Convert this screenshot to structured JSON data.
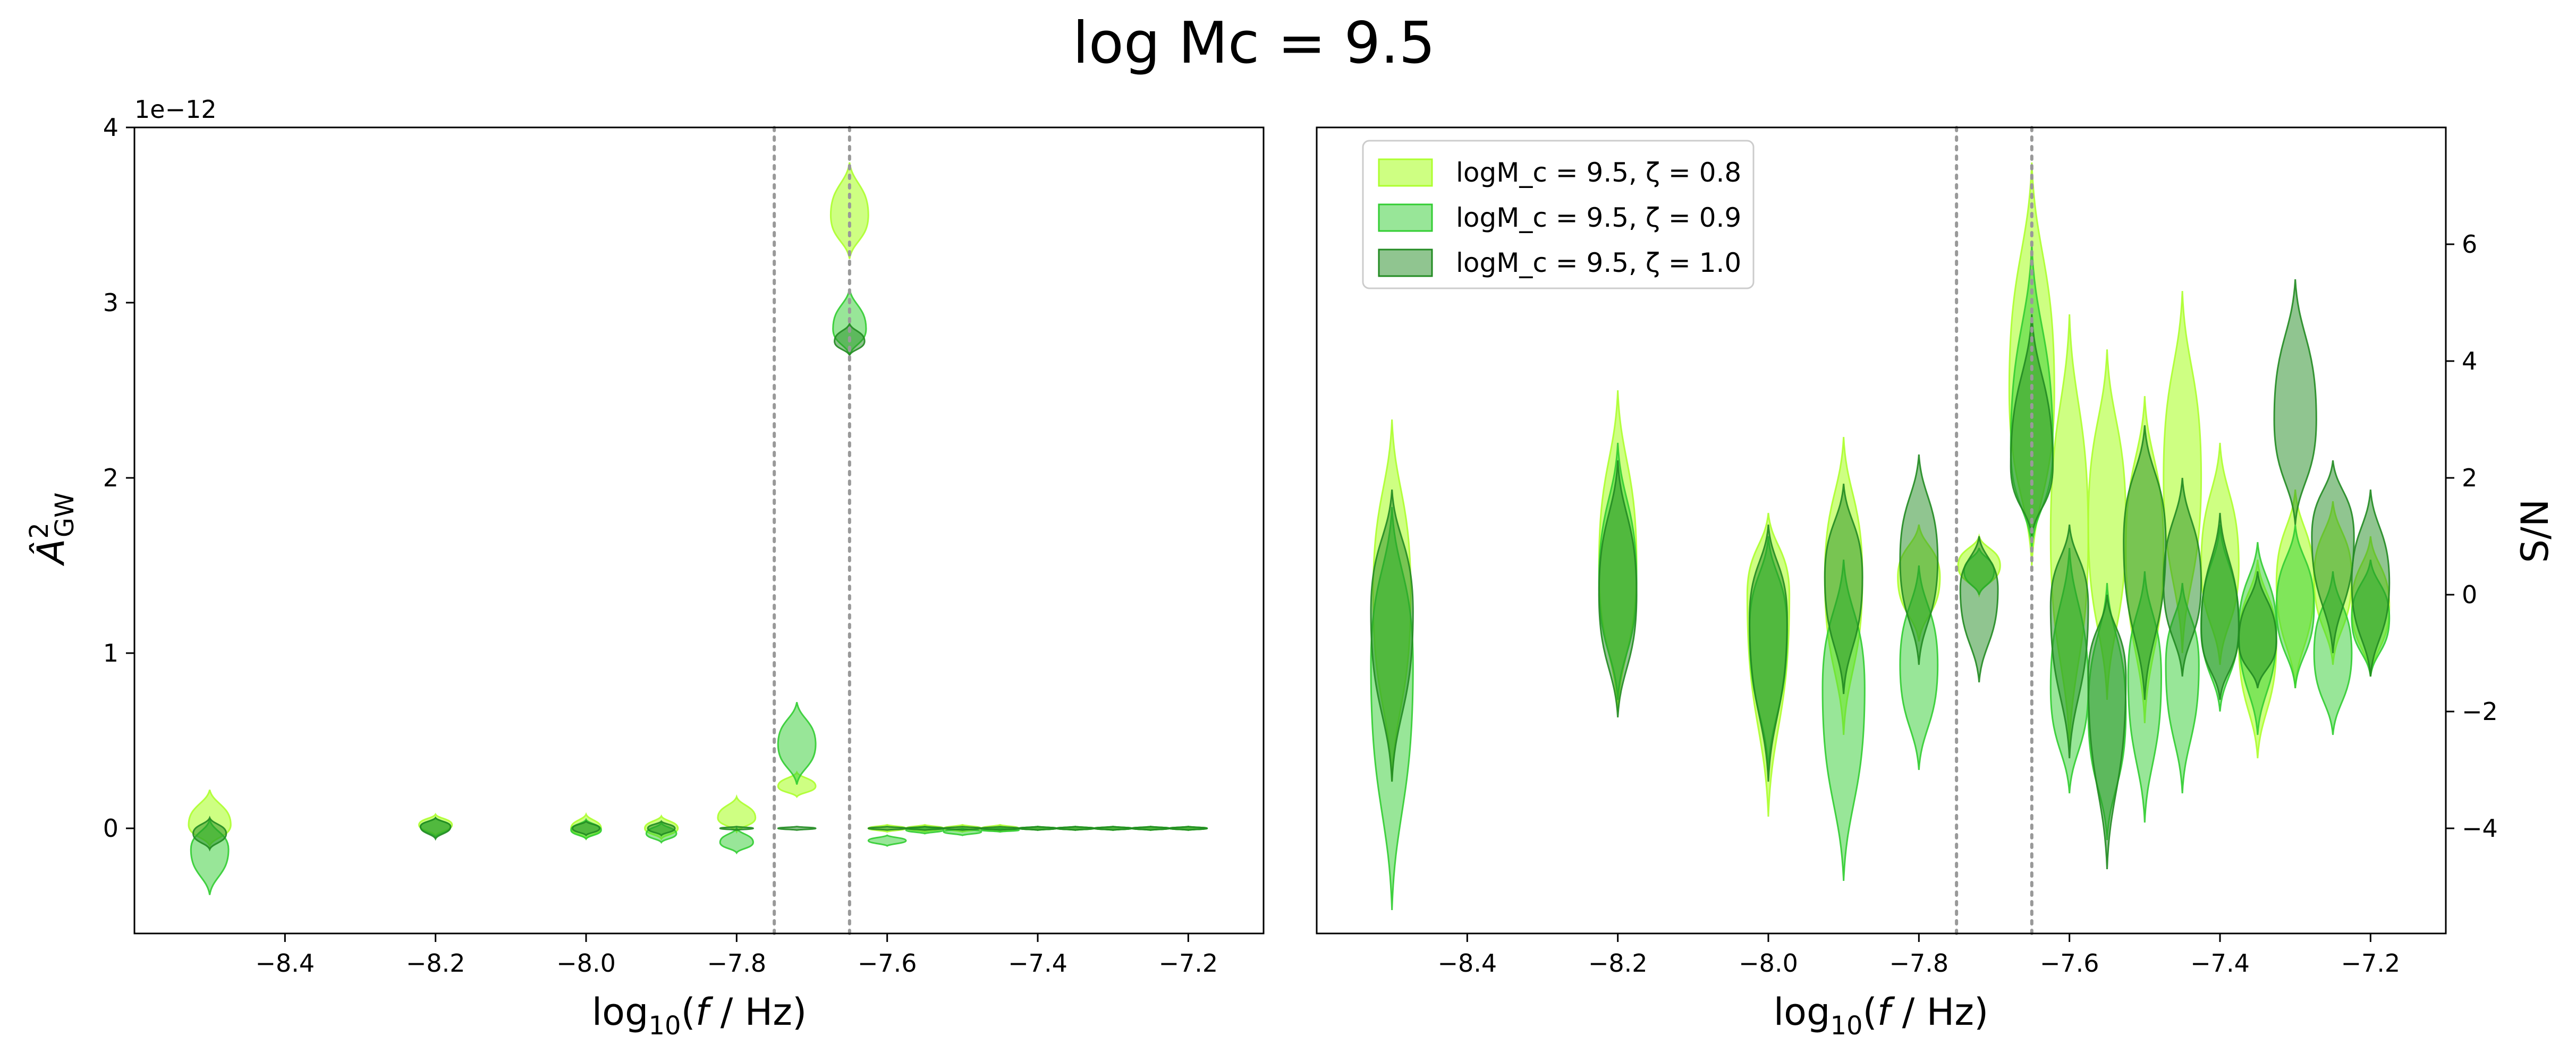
{
  "figure": {
    "title": "log Mc = 9.5"
  },
  "colors": {
    "zeta_0_8": "#adff2f",
    "zeta_0_9": "#32cd32",
    "zeta_1_0": "#228b22",
    "vline": "#999999"
  },
  "chart_data": [
    {
      "type": "violin",
      "panel": "left",
      "xlabel": "log10(f / Hz)",
      "ylabel": "Â²GW",
      "y_offset_label": "1e−12",
      "xlim": [
        -8.6,
        -7.1
      ],
      "ylim": [
        -0.6,
        4.0
      ],
      "xticks": [
        -8.4,
        -8.2,
        -8.0,
        -7.8,
        -7.6,
        -7.4,
        -7.2
      ],
      "xtick_labels": [
        "−8.4",
        "−8.2",
        "−8.0",
        "−7.8",
        "−7.6",
        "−7.4",
        "−7.2"
      ],
      "yticks": [
        0,
        1,
        2,
        3,
        4
      ],
      "ytick_labels": [
        "0",
        "1",
        "2",
        "3",
        "4"
      ],
      "vlines": [
        -7.75,
        -7.65
      ],
      "series": [
        {
          "name": "logM_c = 9.5, ζ = 0.8",
          "color_key": "zeta_0_8",
          "violins": [
            {
              "x": -8.5,
              "center": 0.02,
              "min": -0.1,
              "max": 0.22,
              "halfwidth": 0.028
            },
            {
              "x": -8.2,
              "center": 0.02,
              "min": -0.04,
              "max": 0.08,
              "halfwidth": 0.022
            },
            {
              "x": -8.0,
              "center": 0.0,
              "min": -0.06,
              "max": 0.08,
              "halfwidth": 0.02
            },
            {
              "x": -7.9,
              "center": 0.0,
              "min": -0.06,
              "max": 0.07,
              "halfwidth": 0.022
            },
            {
              "x": -7.8,
              "center": 0.06,
              "min": -0.02,
              "max": 0.18,
              "halfwidth": 0.025
            },
            {
              "x": -7.72,
              "center": 0.24,
              "min": 0.18,
              "max": 0.32,
              "halfwidth": 0.025
            },
            {
              "x": -7.65,
              "center": 3.5,
              "min": 3.25,
              "max": 3.8,
              "halfwidth": 0.025
            },
            {
              "x": -7.6,
              "center": 0.0,
              "min": -0.02,
              "max": 0.02,
              "halfwidth": 0.025
            },
            {
              "x": -7.55,
              "center": 0.0,
              "min": -0.02,
              "max": 0.02,
              "halfwidth": 0.025
            },
            {
              "x": -7.5,
              "center": 0.0,
              "min": -0.02,
              "max": 0.02,
              "halfwidth": 0.025
            },
            {
              "x": -7.45,
              "center": 0.0,
              "min": -0.02,
              "max": 0.02,
              "halfwidth": 0.025
            },
            {
              "x": -7.4,
              "center": 0.0,
              "min": -0.01,
              "max": 0.01,
              "halfwidth": 0.025
            },
            {
              "x": -7.35,
              "center": 0.0,
              "min": -0.01,
              "max": 0.01,
              "halfwidth": 0.025
            },
            {
              "x": -7.3,
              "center": 0.0,
              "min": -0.01,
              "max": 0.01,
              "halfwidth": 0.025
            },
            {
              "x": -7.25,
              "center": 0.0,
              "min": -0.01,
              "max": 0.01,
              "halfwidth": 0.025
            },
            {
              "x": -7.2,
              "center": 0.0,
              "min": -0.01,
              "max": 0.01,
              "halfwidth": 0.025
            }
          ]
        },
        {
          "name": "logM_c = 9.5, ζ = 0.9",
          "color_key": "zeta_0_9",
          "violins": [
            {
              "x": -8.5,
              "center": -0.12,
              "min": -0.38,
              "max": 0.05,
              "halfwidth": 0.025
            },
            {
              "x": -8.2,
              "center": 0.01,
              "min": -0.05,
              "max": 0.06,
              "halfwidth": 0.02
            },
            {
              "x": -8.0,
              "center": -0.01,
              "min": -0.06,
              "max": 0.05,
              "halfwidth": 0.02
            },
            {
              "x": -7.9,
              "center": -0.03,
              "min": -0.08,
              "max": 0.03,
              "halfwidth": 0.02
            },
            {
              "x": -7.8,
              "center": -0.08,
              "min": -0.14,
              "max": 0.0,
              "halfwidth": 0.022
            },
            {
              "x": -7.72,
              "center": 0.48,
              "min": 0.25,
              "max": 0.72,
              "halfwidth": 0.025
            },
            {
              "x": -7.65,
              "center": 2.85,
              "min": 2.7,
              "max": 3.08,
              "halfwidth": 0.022
            },
            {
              "x": -7.6,
              "center": -0.07,
              "min": -0.1,
              "max": -0.04,
              "halfwidth": 0.025
            },
            {
              "x": -7.55,
              "center": -0.01,
              "min": -0.03,
              "max": 0.01,
              "halfwidth": 0.025
            },
            {
              "x": -7.5,
              "center": -0.02,
              "min": -0.04,
              "max": 0.0,
              "halfwidth": 0.025
            },
            {
              "x": -7.45,
              "center": -0.01,
              "min": -0.02,
              "max": 0.0,
              "halfwidth": 0.025
            },
            {
              "x": -7.4,
              "center": 0.0,
              "min": -0.01,
              "max": 0.01,
              "halfwidth": 0.025
            },
            {
              "x": -7.35,
              "center": 0.0,
              "min": -0.01,
              "max": 0.01,
              "halfwidth": 0.025
            },
            {
              "x": -7.3,
              "center": 0.0,
              "min": -0.01,
              "max": 0.01,
              "halfwidth": 0.025
            },
            {
              "x": -7.25,
              "center": 0.0,
              "min": -0.01,
              "max": 0.01,
              "halfwidth": 0.025
            },
            {
              "x": -7.2,
              "center": 0.0,
              "min": -0.01,
              "max": 0.01,
              "halfwidth": 0.025
            }
          ]
        },
        {
          "name": "logM_c = 9.5, ζ = 1.0",
          "color_key": "zeta_1_0",
          "violins": [
            {
              "x": -8.5,
              "center": -0.03,
              "min": -0.12,
              "max": 0.06,
              "halfwidth": 0.022
            },
            {
              "x": -8.2,
              "center": 0.01,
              "min": -0.06,
              "max": 0.06,
              "halfwidth": 0.02
            },
            {
              "x": -8.0,
              "center": 0.0,
              "min": -0.04,
              "max": 0.04,
              "halfwidth": 0.018
            },
            {
              "x": -7.9,
              "center": 0.0,
              "min": -0.04,
              "max": 0.04,
              "halfwidth": 0.018
            },
            {
              "x": -7.8,
              "center": 0.0,
              "min": -0.01,
              "max": 0.01,
              "halfwidth": 0.022
            },
            {
              "x": -7.72,
              "center": 0.0,
              "min": -0.01,
              "max": 0.01,
              "halfwidth": 0.025
            },
            {
              "x": -7.65,
              "center": 2.78,
              "min": 2.7,
              "max": 2.88,
              "halfwidth": 0.02
            },
            {
              "x": -7.6,
              "center": 0.0,
              "min": -0.01,
              "max": 0.01,
              "halfwidth": 0.025
            },
            {
              "x": -7.55,
              "center": 0.0,
              "min": -0.01,
              "max": 0.01,
              "halfwidth": 0.025
            },
            {
              "x": -7.5,
              "center": 0.0,
              "min": -0.01,
              "max": 0.01,
              "halfwidth": 0.025
            },
            {
              "x": -7.45,
              "center": 0.0,
              "min": -0.01,
              "max": 0.01,
              "halfwidth": 0.025
            },
            {
              "x": -7.4,
              "center": 0.0,
              "min": -0.01,
              "max": 0.01,
              "halfwidth": 0.025
            },
            {
              "x": -7.35,
              "center": 0.0,
              "min": -0.01,
              "max": 0.01,
              "halfwidth": 0.025
            },
            {
              "x": -7.3,
              "center": 0.0,
              "min": -0.01,
              "max": 0.01,
              "halfwidth": 0.025
            },
            {
              "x": -7.25,
              "center": 0.0,
              "min": -0.01,
              "max": 0.01,
              "halfwidth": 0.025
            },
            {
              "x": -7.2,
              "center": 0.0,
              "min": -0.01,
              "max": 0.01,
              "halfwidth": 0.025
            }
          ]
        }
      ]
    },
    {
      "type": "violin",
      "panel": "right",
      "xlabel": "log10(f / Hz)",
      "ylabel": "S/N",
      "xlim": [
        -8.6,
        -7.1
      ],
      "ylim": [
        -5.8,
        8.0
      ],
      "xticks": [
        -8.4,
        -8.2,
        -8.0,
        -7.8,
        -7.6,
        -7.4,
        -7.2
      ],
      "xtick_labels": [
        "−8.4",
        "−8.2",
        "−8.0",
        "−7.8",
        "−7.6",
        "−7.4",
        "−7.2"
      ],
      "yticks": [
        -4,
        -2,
        0,
        2,
        4,
        6
      ],
      "ytick_labels": [
        "−4",
        "−2",
        "0",
        "2",
        "4",
        "6"
      ],
      "vlines": [
        -7.75,
        -7.65
      ],
      "legend_position": "upper-left",
      "series": [
        {
          "name": "logM_c = 9.5, ζ = 0.8",
          "color_key": "zeta_0_8",
          "violins": [
            {
              "x": -8.5,
              "center": 0.0,
              "min": -3.2,
              "max": 3.0,
              "halfwidth": 0.025
            },
            {
              "x": -8.2,
              "center": 0.5,
              "min": -2.0,
              "max": 3.5,
              "halfwidth": 0.025
            },
            {
              "x": -8.0,
              "center": 0.0,
              "min": -3.8,
              "max": 1.4,
              "halfwidth": 0.028
            },
            {
              "x": -7.9,
              "center": 0.3,
              "min": -2.4,
              "max": 2.7,
              "halfwidth": 0.025
            },
            {
              "x": -7.8,
              "center": 0.3,
              "min": -0.8,
              "max": 1.2,
              "halfwidth": 0.028
            },
            {
              "x": -7.72,
              "center": 0.5,
              "min": 0.0,
              "max": 1.0,
              "halfwidth": 0.028
            },
            {
              "x": -7.65,
              "center": 3.5,
              "min": 0.5,
              "max": 7.4,
              "halfwidth": 0.03
            },
            {
              "x": -7.6,
              "center": 1.0,
              "min": -2.6,
              "max": 4.8,
              "halfwidth": 0.025
            },
            {
              "x": -7.55,
              "center": 1.2,
              "min": -1.8,
              "max": 4.2,
              "halfwidth": 0.025
            },
            {
              "x": -7.5,
              "center": 0.8,
              "min": -2.2,
              "max": 3.4,
              "halfwidth": 0.025
            },
            {
              "x": -7.45,
              "center": 2.0,
              "min": -1.0,
              "max": 5.2,
              "halfwidth": 0.025
            },
            {
              "x": -7.4,
              "center": 0.5,
              "min": -1.2,
              "max": 2.6,
              "halfwidth": 0.025
            },
            {
              "x": -7.35,
              "center": -0.8,
              "min": -2.8,
              "max": 0.6,
              "halfwidth": 0.025
            },
            {
              "x": -7.3,
              "center": 0.2,
              "min": -1.6,
              "max": 1.8,
              "halfwidth": 0.025
            },
            {
              "x": -7.25,
              "center": 0.3,
              "min": -1.2,
              "max": 1.6,
              "halfwidth": 0.025
            },
            {
              "x": -7.2,
              "center": -0.2,
              "min": -1.4,
              "max": 1.0,
              "halfwidth": 0.025
            }
          ]
        },
        {
          "name": "logM_c = 9.5, ζ = 0.9",
          "color_key": "zeta_0_9",
          "violins": [
            {
              "x": -8.5,
              "center": -1.2,
              "min": -5.4,
              "max": 1.5,
              "halfwidth": 0.028
            },
            {
              "x": -8.2,
              "center": 0.2,
              "min": -1.8,
              "max": 2.6,
              "halfwidth": 0.025
            },
            {
              "x": -8.0,
              "center": -0.6,
              "min": -3.0,
              "max": 1.0,
              "halfwidth": 0.025
            },
            {
              "x": -7.9,
              "center": -1.6,
              "min": -4.9,
              "max": 0.6,
              "halfwidth": 0.028
            },
            {
              "x": -7.8,
              "center": -1.2,
              "min": -3.0,
              "max": 0.5,
              "halfwidth": 0.025
            },
            {
              "x": -7.72,
              "center": 0.4,
              "min": 0.0,
              "max": 0.8,
              "halfwidth": 0.02
            },
            {
              "x": -7.65,
              "center": 2.5,
              "min": 0.8,
              "max": 6.0,
              "halfwidth": 0.028
            },
            {
              "x": -7.6,
              "center": -1.6,
              "min": -3.4,
              "max": 0.8,
              "halfwidth": 0.025
            },
            {
              "x": -7.55,
              "center": -2.0,
              "min": -4.2,
              "max": 0.2,
              "halfwidth": 0.025
            },
            {
              "x": -7.5,
              "center": -1.4,
              "min": -3.9,
              "max": 0.4,
              "halfwidth": 0.022
            },
            {
              "x": -7.45,
              "center": -1.2,
              "min": -3.4,
              "max": 0.2,
              "halfwidth": 0.022
            },
            {
              "x": -7.4,
              "center": -0.5,
              "min": -2.0,
              "max": 1.2,
              "halfwidth": 0.025
            },
            {
              "x": -7.35,
              "center": -0.6,
              "min": -2.4,
              "max": 0.9,
              "halfwidth": 0.025
            },
            {
              "x": -7.3,
              "center": -0.2,
              "min": -1.6,
              "max": 1.2,
              "halfwidth": 0.025
            },
            {
              "x": -7.25,
              "center": -1.0,
              "min": -2.4,
              "max": 0.4,
              "halfwidth": 0.025
            },
            {
              "x": -7.2,
              "center": -0.4,
              "min": -1.4,
              "max": 0.6,
              "halfwidth": 0.025
            }
          ]
        },
        {
          "name": "logM_c = 9.5, ζ = 1.0",
          "color_key": "zeta_1_0",
          "violins": [
            {
              "x": -8.5,
              "center": -0.3,
              "min": -3.2,
              "max": 1.8,
              "halfwidth": 0.028
            },
            {
              "x": -8.2,
              "center": 0.0,
              "min": -2.1,
              "max": 2.3,
              "halfwidth": 0.025
            },
            {
              "x": -8.0,
              "center": -0.4,
              "min": -3.2,
              "max": 1.2,
              "halfwidth": 0.025
            },
            {
              "x": -7.9,
              "center": 0.3,
              "min": -1.7,
              "max": 1.9,
              "halfwidth": 0.025
            },
            {
              "x": -7.8,
              "center": 0.6,
              "min": -1.2,
              "max": 2.4,
              "halfwidth": 0.025
            },
            {
              "x": -7.72,
              "center": 0.1,
              "min": -1.5,
              "max": 1.0,
              "halfwidth": 0.025
            },
            {
              "x": -7.65,
              "center": 2.2,
              "min": 1.0,
              "max": 4.8,
              "halfwidth": 0.028
            },
            {
              "x": -7.6,
              "center": -0.2,
              "min": -2.8,
              "max": 1.2,
              "halfwidth": 0.025
            },
            {
              "x": -7.55,
              "center": -1.4,
              "min": -4.7,
              "max": 0.0,
              "halfwidth": 0.025
            },
            {
              "x": -7.5,
              "center": 0.9,
              "min": -1.8,
              "max": 2.9,
              "halfwidth": 0.028
            },
            {
              "x": -7.45,
              "center": 0.2,
              "min": -1.4,
              "max": 2.0,
              "halfwidth": 0.025
            },
            {
              "x": -7.4,
              "center": -0.6,
              "min": -1.8,
              "max": 1.4,
              "halfwidth": 0.025
            },
            {
              "x": -7.35,
              "center": -0.8,
              "min": -1.6,
              "max": 0.4,
              "halfwidth": 0.025
            },
            {
              "x": -7.3,
              "center": 3.0,
              "min": 1.2,
              "max": 5.4,
              "halfwidth": 0.028
            },
            {
              "x": -7.25,
              "center": 1.0,
              "min": -1.0,
              "max": 2.3,
              "halfwidth": 0.028
            },
            {
              "x": -7.2,
              "center": 0.2,
              "min": -1.4,
              "max": 1.8,
              "halfwidth": 0.025
            }
          ]
        }
      ]
    }
  ]
}
